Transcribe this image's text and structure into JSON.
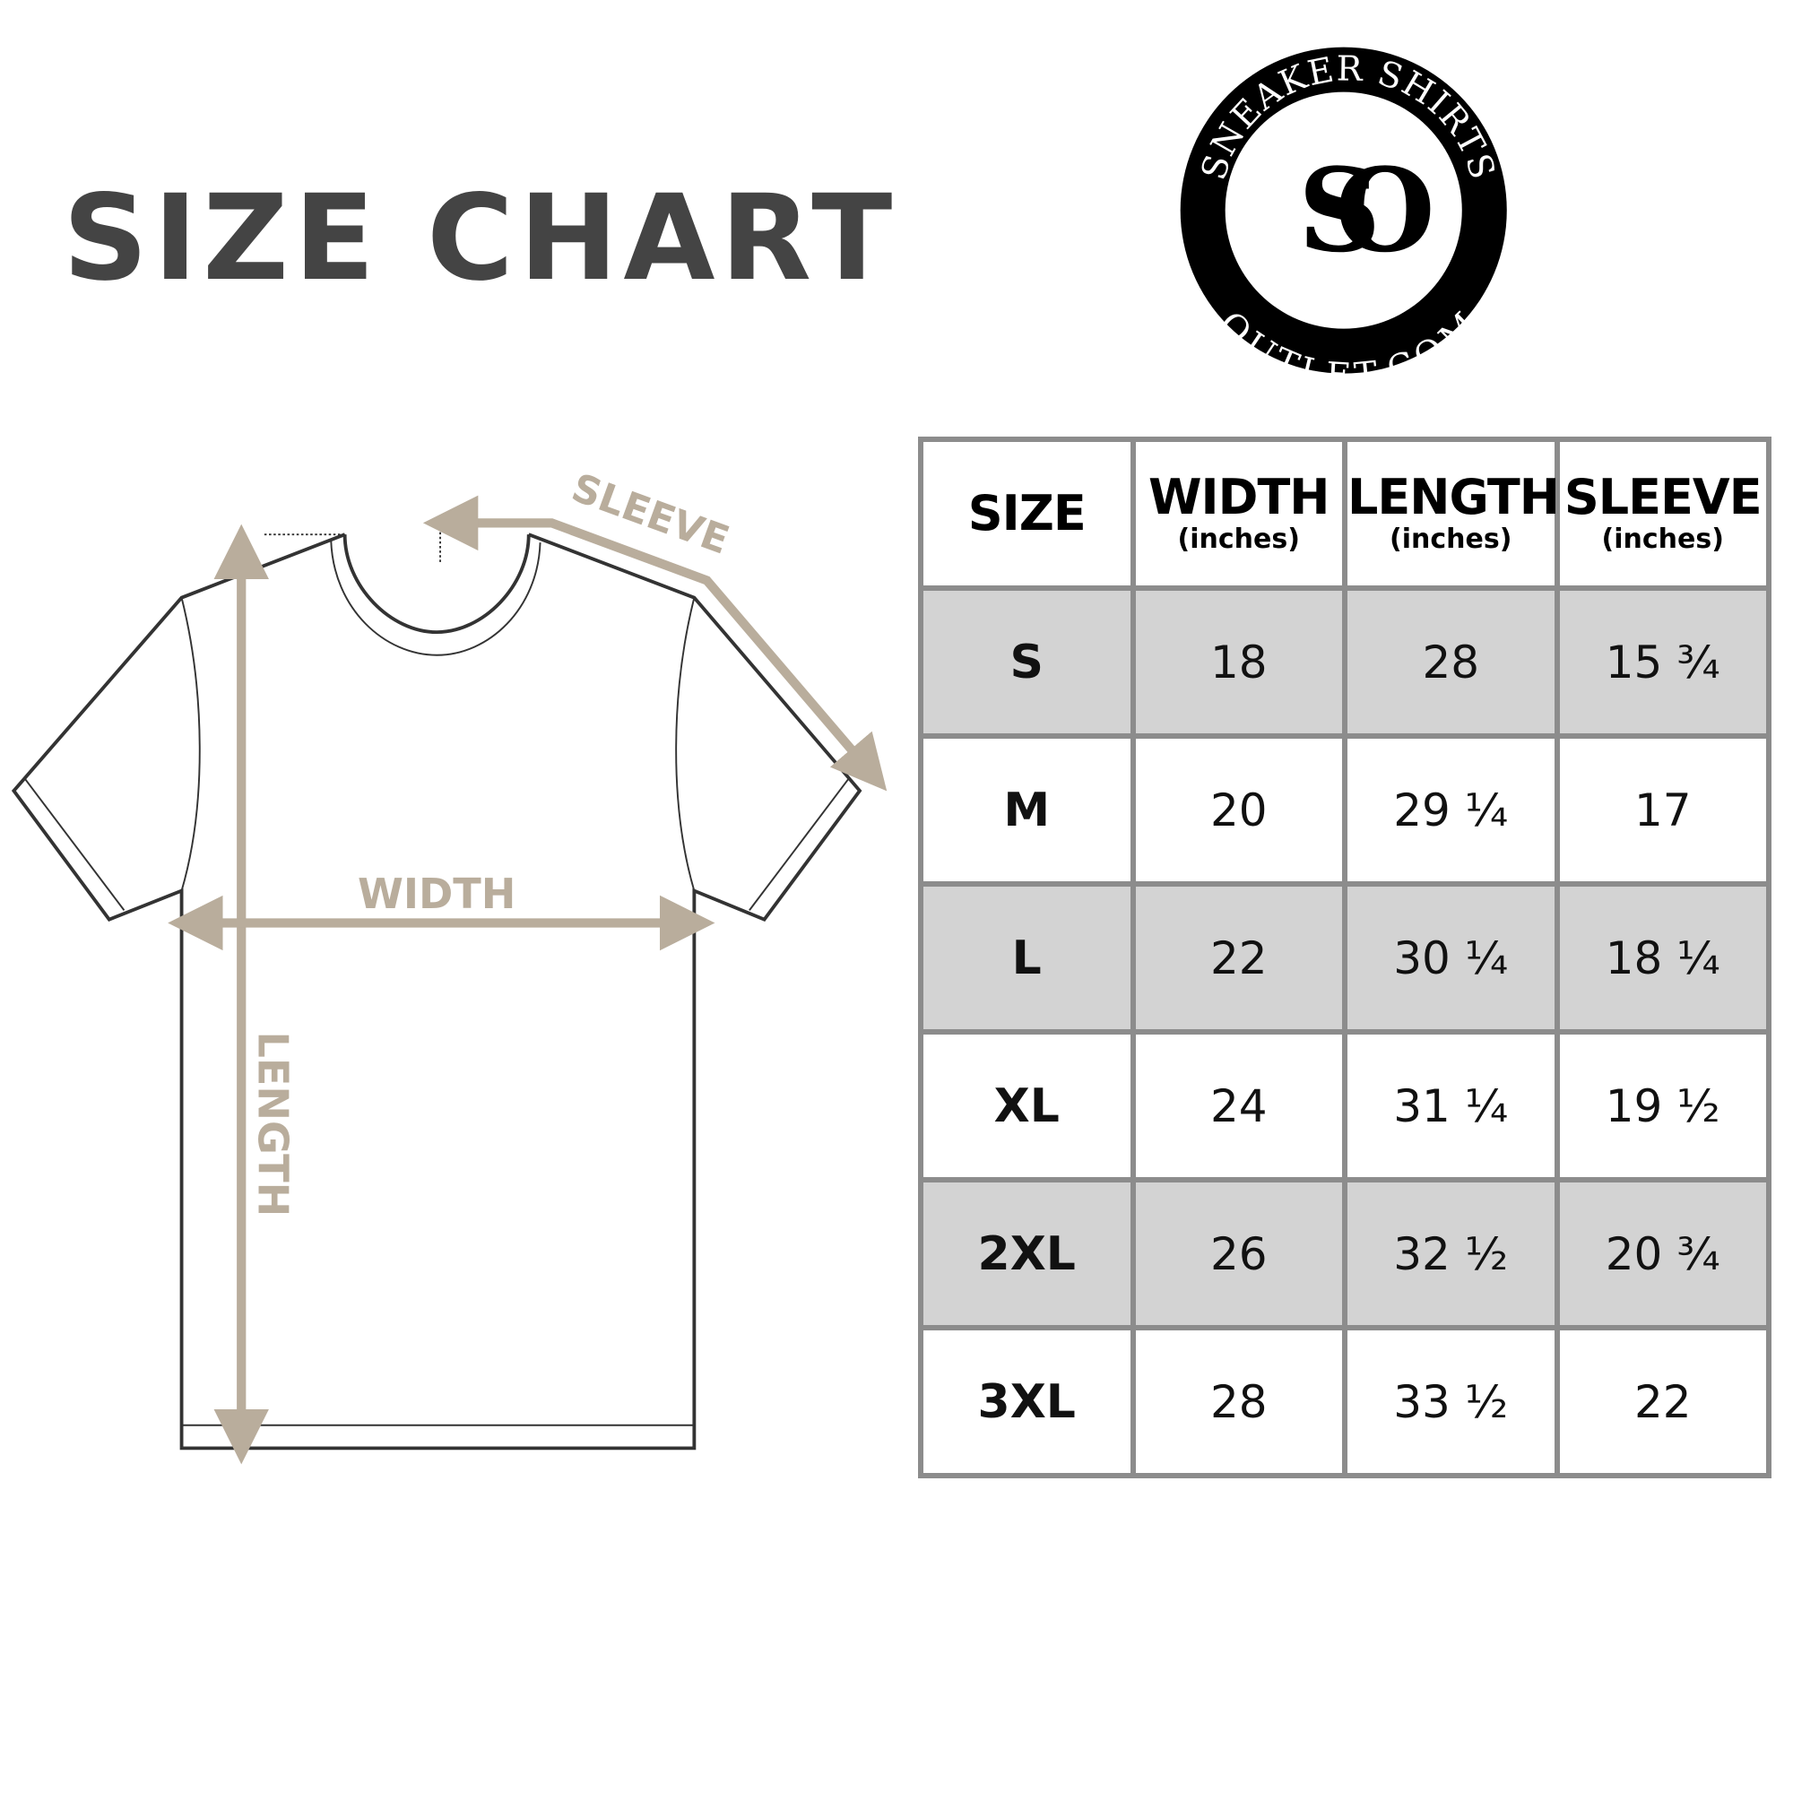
{
  "title": "SIZE CHART",
  "logo": {
    "top_text": "SNEAKER SHIRTS",
    "bottom_text": "OUTLET.COM",
    "monogram": "SO"
  },
  "diagram": {
    "sleeve_label": "SLEEVE",
    "width_label": "WIDTH",
    "length_label": "LENGTH",
    "arrow_color": "#b9ad9c"
  },
  "table": {
    "headers": [
      {
        "label": "SIZE",
        "unit": ""
      },
      {
        "label": "WIDTH",
        "unit": "(inches)"
      },
      {
        "label": "LENGTH",
        "unit": "(inches)"
      },
      {
        "label": "SLEEVE",
        "unit": "(inches)"
      }
    ],
    "rows": [
      [
        "S",
        "18",
        "28",
        "15 ¾"
      ],
      [
        "M",
        "20",
        "29 ¼",
        "17"
      ],
      [
        "L",
        "22",
        "30 ¼",
        "18 ¼"
      ],
      [
        "XL",
        "24",
        "31 ¼",
        "19 ½"
      ],
      [
        "2XL",
        "26",
        "32 ½",
        "20 ¾"
      ],
      [
        "3XL",
        "28",
        "33 ½",
        "22"
      ]
    ],
    "shade_color": "#d3d3d3",
    "border_color": "#8c8c8c"
  }
}
